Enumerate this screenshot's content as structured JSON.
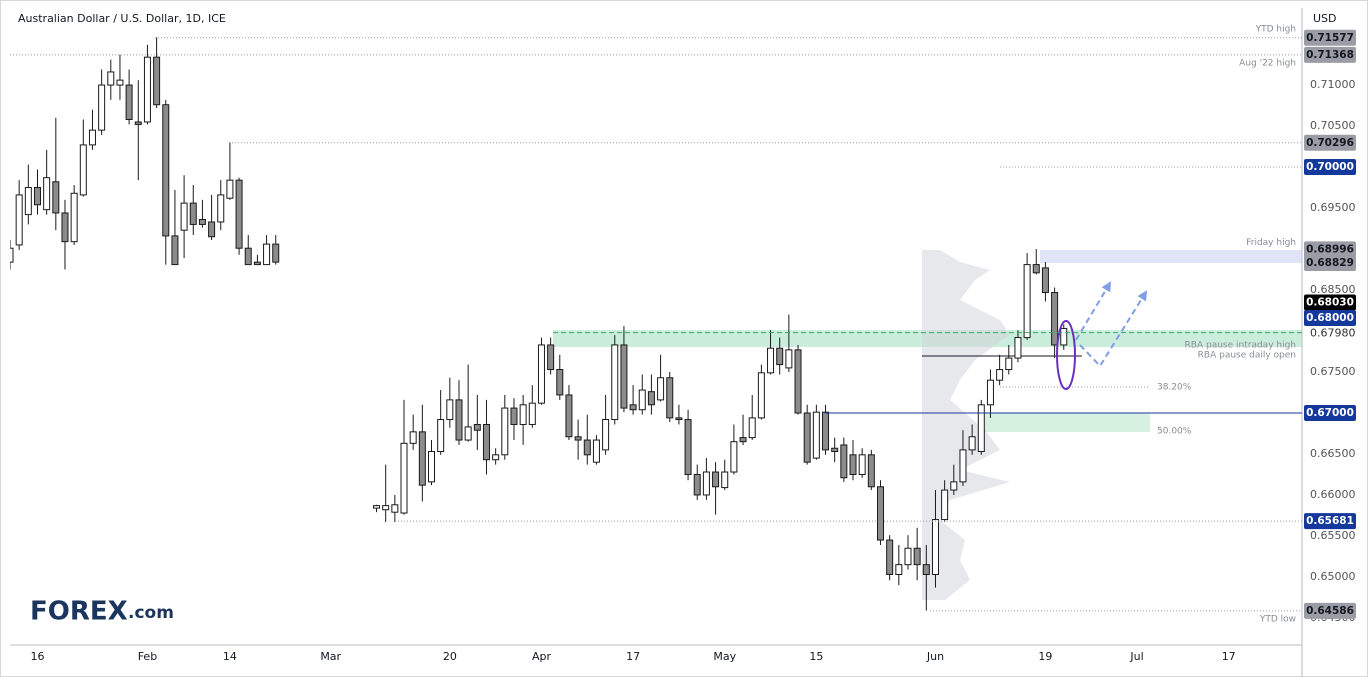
{
  "chart_data": {
    "type": "candlestick",
    "title": "Australian Dollar / U.S. Dollar, 1D, ICE",
    "currency": "USD",
    "logo": {
      "brand": "FOREX",
      "suffix": ".com"
    },
    "xlim": [
      -3,
      138
    ],
    "ylim": [
      0.6417,
      0.7194
    ],
    "grid": false,
    "up_color": "#ffffff",
    "down_color": "#8c8c8c",
    "border_color": "#1a1a1a",
    "xticks": [
      {
        "value": 0,
        "label": "16"
      },
      {
        "value": 12,
        "label": "Feb"
      },
      {
        "value": 21,
        "label": "14"
      },
      {
        "value": 32,
        "label": "Mar"
      },
      {
        "value": 45,
        "label": "20"
      },
      {
        "value": 55,
        "label": "Apr"
      },
      {
        "value": 65,
        "label": "17"
      },
      {
        "value": 75,
        "label": "May"
      },
      {
        "value": 85,
        "label": "15"
      },
      {
        "value": 98,
        "label": "Jun"
      },
      {
        "value": 110,
        "label": "19"
      },
      {
        "value": 120,
        "label": "Jul"
      },
      {
        "value": 130,
        "label": "17"
      }
    ],
    "yticks": [
      {
        "value": 0.71,
        "label": "0.71000"
      },
      {
        "value": 0.705,
        "label": "0.70500"
      },
      {
        "value": 0.695,
        "label": "0.69500"
      },
      {
        "value": 0.685,
        "label": "0.68500"
      },
      {
        "value": 0.675,
        "label": "0.67500"
      },
      {
        "value": 0.665,
        "label": "0.66500"
      },
      {
        "value": 0.66,
        "label": "0.66000"
      },
      {
        "value": 0.655,
        "label": "0.65500"
      },
      {
        "value": 0.65,
        "label": "0.65000"
      },
      {
        "value": 0.645,
        "label": "0.64500"
      }
    ],
    "x": [
      -3,
      -2,
      -1,
      0,
      1,
      2,
      3,
      4,
      5,
      6,
      7,
      8,
      9,
      10,
      11,
      12,
      13,
      14,
      15,
      16,
      17,
      18,
      19,
      20,
      21,
      22,
      23,
      24,
      25,
      26,
      37,
      38,
      39,
      40,
      41,
      42,
      43,
      44,
      45,
      46,
      47,
      48,
      49,
      50,
      51,
      52,
      53,
      54,
      55,
      56,
      57,
      58,
      59,
      60,
      61,
      62,
      63,
      64,
      65,
      66,
      67,
      68,
      69,
      70,
      71,
      72,
      73,
      74,
      75,
      76,
      77,
      78,
      79,
      80,
      81,
      82,
      83,
      84,
      85,
      86,
      87,
      88,
      89,
      90,
      91,
      92,
      93,
      94,
      95,
      96,
      97,
      98,
      99,
      100,
      101,
      102,
      103,
      104,
      105,
      106,
      107,
      108,
      109,
      110,
      111,
      112
    ],
    "open": [
      0.6884,
      0.6905,
      0.6942,
      0.6975,
      0.6948,
      0.6982,
      0.6944,
      0.6909,
      0.6966,
      0.7027,
      0.7045,
      0.71,
      0.71,
      0.71,
      0.7055,
      0.7055,
      0.7134,
      0.7076,
      0.6916,
      0.6923,
      0.6956,
      0.6936,
      0.6933,
      0.6933,
      0.6962,
      0.6984,
      0.6901,
      0.6884,
      0.6881,
      0.6906,
      0.6584,
      0.6582,
      0.6579,
      0.6578,
      0.6663,
      0.6677,
      0.6616,
      0.6653,
      0.6692,
      0.6716,
      0.6667,
      0.6686,
      0.6686,
      0.6643,
      0.6649,
      0.6706,
      0.6686,
      0.6686,
      0.6712,
      0.6783,
      0.6753,
      0.6722,
      0.6671,
      0.6667,
      0.664,
      0.6655,
      0.6692,
      0.6783,
      0.671,
      0.6704,
      0.6726,
      0.6716,
      0.6743,
      0.6694,
      0.6692,
      0.6625,
      0.66,
      0.6628,
      0.6609,
      0.6628,
      0.667,
      0.667,
      0.6694,
      0.6749,
      0.6779,
      0.6755,
      0.6777,
      0.67,
      0.6645,
      0.6701,
      0.6657,
      0.6661,
      0.6649,
      0.6625,
      0.6649,
      0.661,
      0.6545,
      0.6503,
      0.6515,
      0.6535,
      0.6515,
      0.6503,
      0.657,
      0.6606,
      0.6616,
      0.6655,
      0.6653,
      0.671,
      0.674,
      0.6753,
      0.6767,
      0.6792,
      0.6881,
      0.6877,
      0.6847,
      0.6783
    ],
    "high": [
      0.6911,
      0.6984,
      0.7003,
      0.6997,
      0.7021,
      0.706,
      0.696,
      0.6978,
      0.7058,
      0.707,
      0.7119,
      0.7131,
      0.7137,
      0.7119,
      0.7106,
      0.7149,
      0.7158,
      0.7082,
      0.6972,
      0.699,
      0.6978,
      0.696,
      0.6966,
      0.6984,
      0.703,
      0.6987,
      0.6917,
      0.6893,
      0.6917,
      0.6917,
      0.6588,
      0.6637,
      0.66,
      0.6716,
      0.6698,
      0.671,
      0.6667,
      0.6728,
      0.6743,
      0.674,
      0.6759,
      0.6722,
      0.6716,
      0.6657,
      0.6722,
      0.6718,
      0.6722,
      0.6734,
      0.6792,
      0.6792,
      0.6771,
      0.6734,
      0.6692,
      0.6698,
      0.6673,
      0.6722,
      0.6795,
      0.6806,
      0.6734,
      0.6747,
      0.6747,
      0.6771,
      0.675,
      0.671,
      0.6704,
      0.6637,
      0.6645,
      0.664,
      0.6643,
      0.6686,
      0.6698,
      0.6722,
      0.6759,
      0.6801,
      0.6792,
      0.682,
      0.6783,
      0.671,
      0.671,
      0.671,
      0.667,
      0.667,
      0.6667,
      0.6657,
      0.6655,
      0.6618,
      0.6551,
      0.6539,
      0.6551,
      0.656,
      0.6539,
      0.6606,
      0.6618,
      0.6637,
      0.6679,
      0.6686,
      0.6716,
      0.6753,
      0.6771,
      0.6783,
      0.6801,
      0.6895,
      0.69,
      0.6884,
      0.6853,
      0.6808
    ],
    "low": [
      0.6875,
      0.6899,
      0.693,
      0.6942,
      0.6942,
      0.6923,
      0.6875,
      0.6905,
      0.6964,
      0.7021,
      0.7039,
      0.7082,
      0.7082,
      0.7052,
      0.6984,
      0.7052,
      0.7072,
      0.6881,
      0.6881,
      0.6889,
      0.6917,
      0.6926,
      0.6911,
      0.6923,
      0.696,
      0.6893,
      0.6881,
      0.6881,
      0.6881,
      0.6881,
      0.6579,
      0.6567,
      0.6567,
      0.6576,
      0.6655,
      0.6592,
      0.6612,
      0.6649,
      0.6682,
      0.6661,
      0.6665,
      0.6655,
      0.6625,
      0.6637,
      0.6643,
      0.6667,
      0.6661,
      0.6682,
      0.671,
      0.6747,
      0.6716,
      0.6667,
      0.6643,
      0.6637,
      0.6637,
      0.6649,
      0.6686,
      0.6701,
      0.6698,
      0.6698,
      0.6698,
      0.6714,
      0.6689,
      0.6686,
      0.6618,
      0.6594,
      0.6594,
      0.6576,
      0.6606,
      0.6625,
      0.6661,
      0.6667,
      0.6692,
      0.6747,
      0.6747,
      0.675,
      0.6698,
      0.6637,
      0.6643,
      0.6649,
      0.664,
      0.6616,
      0.6618,
      0.6621,
      0.6606,
      0.6539,
      0.6496,
      0.649,
      0.6509,
      0.6496,
      0.6459,
      0.6487,
      0.6567,
      0.66,
      0.6611,
      0.6649,
      0.6649,
      0.6694,
      0.6734,
      0.6747,
      0.6762,
      0.6789,
      0.6869,
      0.6836,
      0.6767,
      0.6777
    ],
    "close": [
      0.6901,
      0.6966,
      0.6975,
      0.6954,
      0.6987,
      0.6944,
      0.6909,
      0.6968,
      0.7027,
      0.7045,
      0.71,
      0.7116,
      0.7106,
      0.7058,
      0.7052,
      0.7134,
      0.7076,
      0.6916,
      0.6881,
      0.6956,
      0.693,
      0.693,
      0.6915,
      0.6966,
      0.6984,
      0.6901,
      0.6881,
      0.6881,
      0.6906,
      0.6884,
      0.6587,
      0.6587,
      0.6588,
      0.6663,
      0.6677,
      0.6612,
      0.6653,
      0.6692,
      0.6716,
      0.6667,
      0.6683,
      0.6679,
      0.6643,
      0.6649,
      0.6706,
      0.6686,
      0.671,
      0.6712,
      0.6783,
      0.6753,
      0.6722,
      0.6671,
      0.6667,
      0.6649,
      0.6667,
      0.6692,
      0.6783,
      0.6706,
      0.6704,
      0.6728,
      0.671,
      0.6743,
      0.6694,
      0.6692,
      0.6625,
      0.66,
      0.6628,
      0.661,
      0.6628,
      0.6665,
      0.6665,
      0.6694,
      0.6749,
      0.6779,
      0.6759,
      0.6777,
      0.67,
      0.664,
      0.6701,
      0.6655,
      0.6653,
      0.6621,
      0.6625,
      0.6649,
      0.661,
      0.6545,
      0.6503,
      0.6515,
      0.6535,
      0.6515,
      0.6503,
      0.657,
      0.6606,
      0.6616,
      0.6655,
      0.6671,
      0.671,
      0.674,
      0.6753,
      0.6767,
      0.6792,
      0.6881,
      0.6871,
      0.6847,
      0.6783,
      0.6803
    ],
    "levels": [
      {
        "value": 0.71577,
        "label": "0.71577",
        "color": "#9a9da6",
        "text_color": "#131722",
        "line": "dotted",
        "note": "YTD high"
      },
      {
        "value": 0.71368,
        "label": "0.71368",
        "color": "#9a9da6",
        "text_color": "#131722",
        "line": "dotted",
        "note": "Aug '22 high"
      },
      {
        "value": 0.70296,
        "label": "0.70296",
        "color": "#9a9da6",
        "text_color": "#131722",
        "line": "dotted"
      },
      {
        "value": 0.7,
        "label": "0.70000",
        "color": "#14389c",
        "text_color": "#ffffff",
        "line": "dotted"
      },
      {
        "value": 0.68996,
        "label": "0.68996",
        "color": "#9a9da6",
        "text_color": "#131722",
        "note": "Friday high"
      },
      {
        "value": 0.68829,
        "label": "0.68829",
        "color": "#9a9da6",
        "text_color": "#131722"
      },
      {
        "value": 0.6803,
        "label": "0.68030",
        "color": "#000000",
        "text_color": "#ffffff"
      },
      {
        "value": 0.68,
        "label": "0.68000",
        "color": "#14389c",
        "text_color": "#ffffff"
      },
      {
        "value": 0.6798,
        "label": "0.67980",
        "line": "dashed"
      },
      {
        "value": 0.67,
        "label": "0.67000",
        "color": "#14389c",
        "text_color": "#ffffff",
        "line": "solid"
      },
      {
        "value": 0.65681,
        "label": "0.65681",
        "color": "#14389c",
        "text_color": "#ffffff",
        "line": "dotted"
      },
      {
        "value": 0.64586,
        "label": "0.64586",
        "color": "#9a9da6",
        "text_color": "#131722",
        "line": "dotted",
        "note": "YTD low"
      }
    ],
    "annotations": [
      "RBA pause intraday high",
      "RBA pause daily open",
      "38.20%",
      "50.00%"
    ]
  }
}
